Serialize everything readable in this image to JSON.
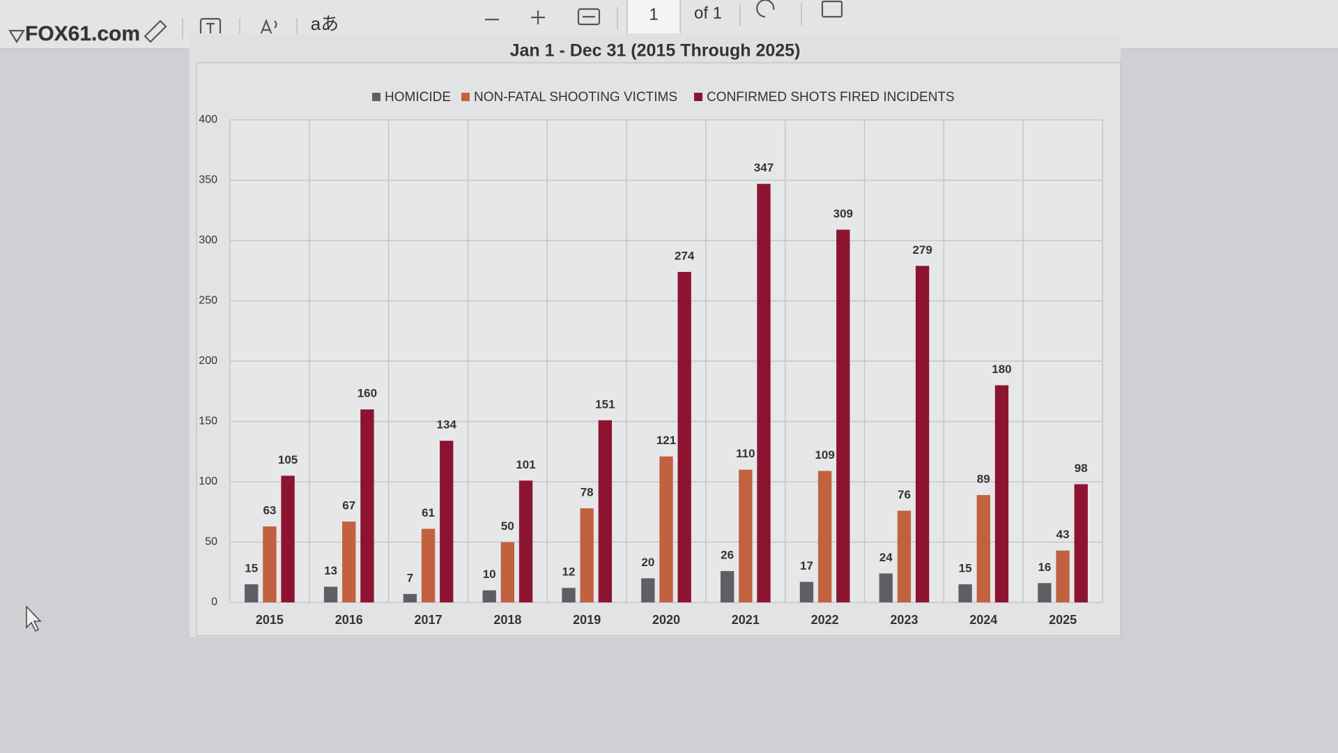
{
  "toolbar": {
    "page_number": "1",
    "page_total": "of 1",
    "translate_icon": "aあ"
  },
  "watermark": "FOX61.com",
  "chart_data": {
    "type": "bar",
    "title": "Jan 1 - Dec 31 (2015 Through 2025)",
    "categories": [
      "2015",
      "2016",
      "2017",
      "2018",
      "2019",
      "2020",
      "2021",
      "2022",
      "2023",
      "2024",
      "2025"
    ],
    "series": [
      {
        "name": "HOMICIDE",
        "color": "#5e5f63",
        "values": [
          15,
          13,
          7,
          10,
          12,
          20,
          26,
          17,
          24,
          15,
          16
        ]
      },
      {
        "name": "NON-FATAL SHOOTING VICTIMS",
        "color": "#c2613f",
        "values": [
          63,
          67,
          61,
          50,
          78,
          121,
          110,
          109,
          76,
          89,
          43
        ]
      },
      {
        "name": "CONFIRMED SHOTS FIRED INCIDENTS",
        "color": "#8c1431",
        "values": [
          105,
          160,
          134,
          101,
          151,
          274,
          347,
          309,
          279,
          180,
          98
        ]
      }
    ],
    "ylim": [
      0,
      400
    ],
    "yticks": [
      0,
      50,
      100,
      150,
      200,
      250,
      300,
      350,
      400
    ],
    "grid": true,
    "legend": "top"
  }
}
